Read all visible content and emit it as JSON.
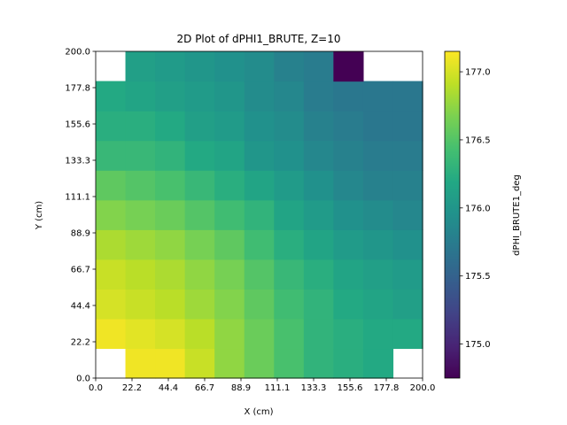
{
  "chart_data": {
    "type": "heatmap",
    "title": "2D Plot of dPHI1_BRUTE, Z=10",
    "xlabel": "X (cm)",
    "ylabel": "Y (cm)",
    "colorbar_label": "dPHI_BRUTE1_deg",
    "colormap": "viridis",
    "xlim": [
      0,
      200
    ],
    "ylim": [
      0,
      200
    ],
    "clim": [
      174.75,
      177.15
    ],
    "x_tick_labels": [
      "0.0",
      "22.2",
      "44.4",
      "66.7",
      "88.9",
      "111.1",
      "133.3",
      "155.6",
      "177.8",
      "200.0"
    ],
    "y_tick_labels": [
      "0.0",
      "22.2",
      "44.4",
      "66.7",
      "88.9",
      "111.1",
      "133.3",
      "155.6",
      "177.8",
      "200.0"
    ],
    "colorbar_tick_labels": [
      "175.0",
      "175.5",
      "176.0",
      "176.5",
      "177.0"
    ],
    "colorbar_ticks": [
      175.0,
      175.5,
      176.0,
      176.5,
      177.0
    ],
    "grid_size": 11,
    "rows_bottom_to_top": [
      [
        null,
        177.1,
        177.1,
        176.95,
        176.75,
        176.6,
        176.45,
        176.3,
        176.25,
        176.2,
        null
      ],
      [
        177.1,
        177.05,
        177.0,
        176.9,
        176.75,
        176.6,
        176.45,
        176.3,
        176.25,
        176.2,
        176.2
      ],
      [
        177.0,
        176.95,
        176.9,
        176.8,
        176.7,
        176.55,
        176.4,
        176.3,
        176.2,
        176.15,
        176.1
      ],
      [
        176.95,
        176.9,
        176.85,
        176.75,
        176.65,
        176.5,
        176.35,
        176.25,
        176.15,
        176.1,
        176.05
      ],
      [
        176.85,
        176.8,
        176.75,
        176.65,
        176.55,
        176.4,
        176.25,
        176.15,
        176.05,
        176.0,
        175.95
      ],
      [
        176.7,
        176.65,
        176.6,
        176.5,
        176.4,
        176.3,
        176.15,
        176.05,
        175.95,
        175.9,
        175.85
      ],
      [
        176.55,
        176.5,
        176.45,
        176.35,
        176.25,
        176.15,
        176.05,
        175.95,
        175.85,
        175.8,
        175.8
      ],
      [
        176.35,
        176.35,
        176.3,
        176.2,
        176.15,
        176.0,
        175.95,
        175.85,
        175.8,
        175.75,
        175.75
      ],
      [
        176.25,
        176.25,
        176.2,
        176.1,
        176.05,
        175.95,
        175.9,
        175.8,
        175.75,
        175.7,
        175.7
      ],
      [
        176.2,
        176.15,
        176.1,
        176.05,
        176.0,
        175.9,
        175.85,
        175.75,
        175.7,
        175.7,
        175.7
      ],
      [
        null,
        176.1,
        176.05,
        176.0,
        175.95,
        175.9,
        175.8,
        175.75,
        174.75,
        null,
        null
      ]
    ]
  }
}
